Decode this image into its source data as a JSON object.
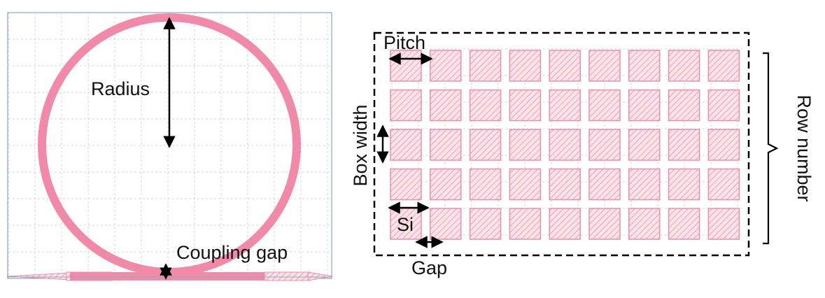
{
  "labels": {
    "radius": "Radius",
    "coupling_gap": "Coupling gap",
    "pitch": "Pitch",
    "box_width": "Box width",
    "row_number": "Row number",
    "si": "Si",
    "gap": "Gap"
  },
  "colors": {
    "waveguide": "#f08aa8",
    "waveguide_hatch": "#e890a8",
    "hatch_fill": "#fbe3ea",
    "grid": "#cfd6df",
    "frame": "#8fa8c4",
    "annotation": "#000000"
  },
  "array": {
    "rows": 5,
    "columns": 9
  }
}
